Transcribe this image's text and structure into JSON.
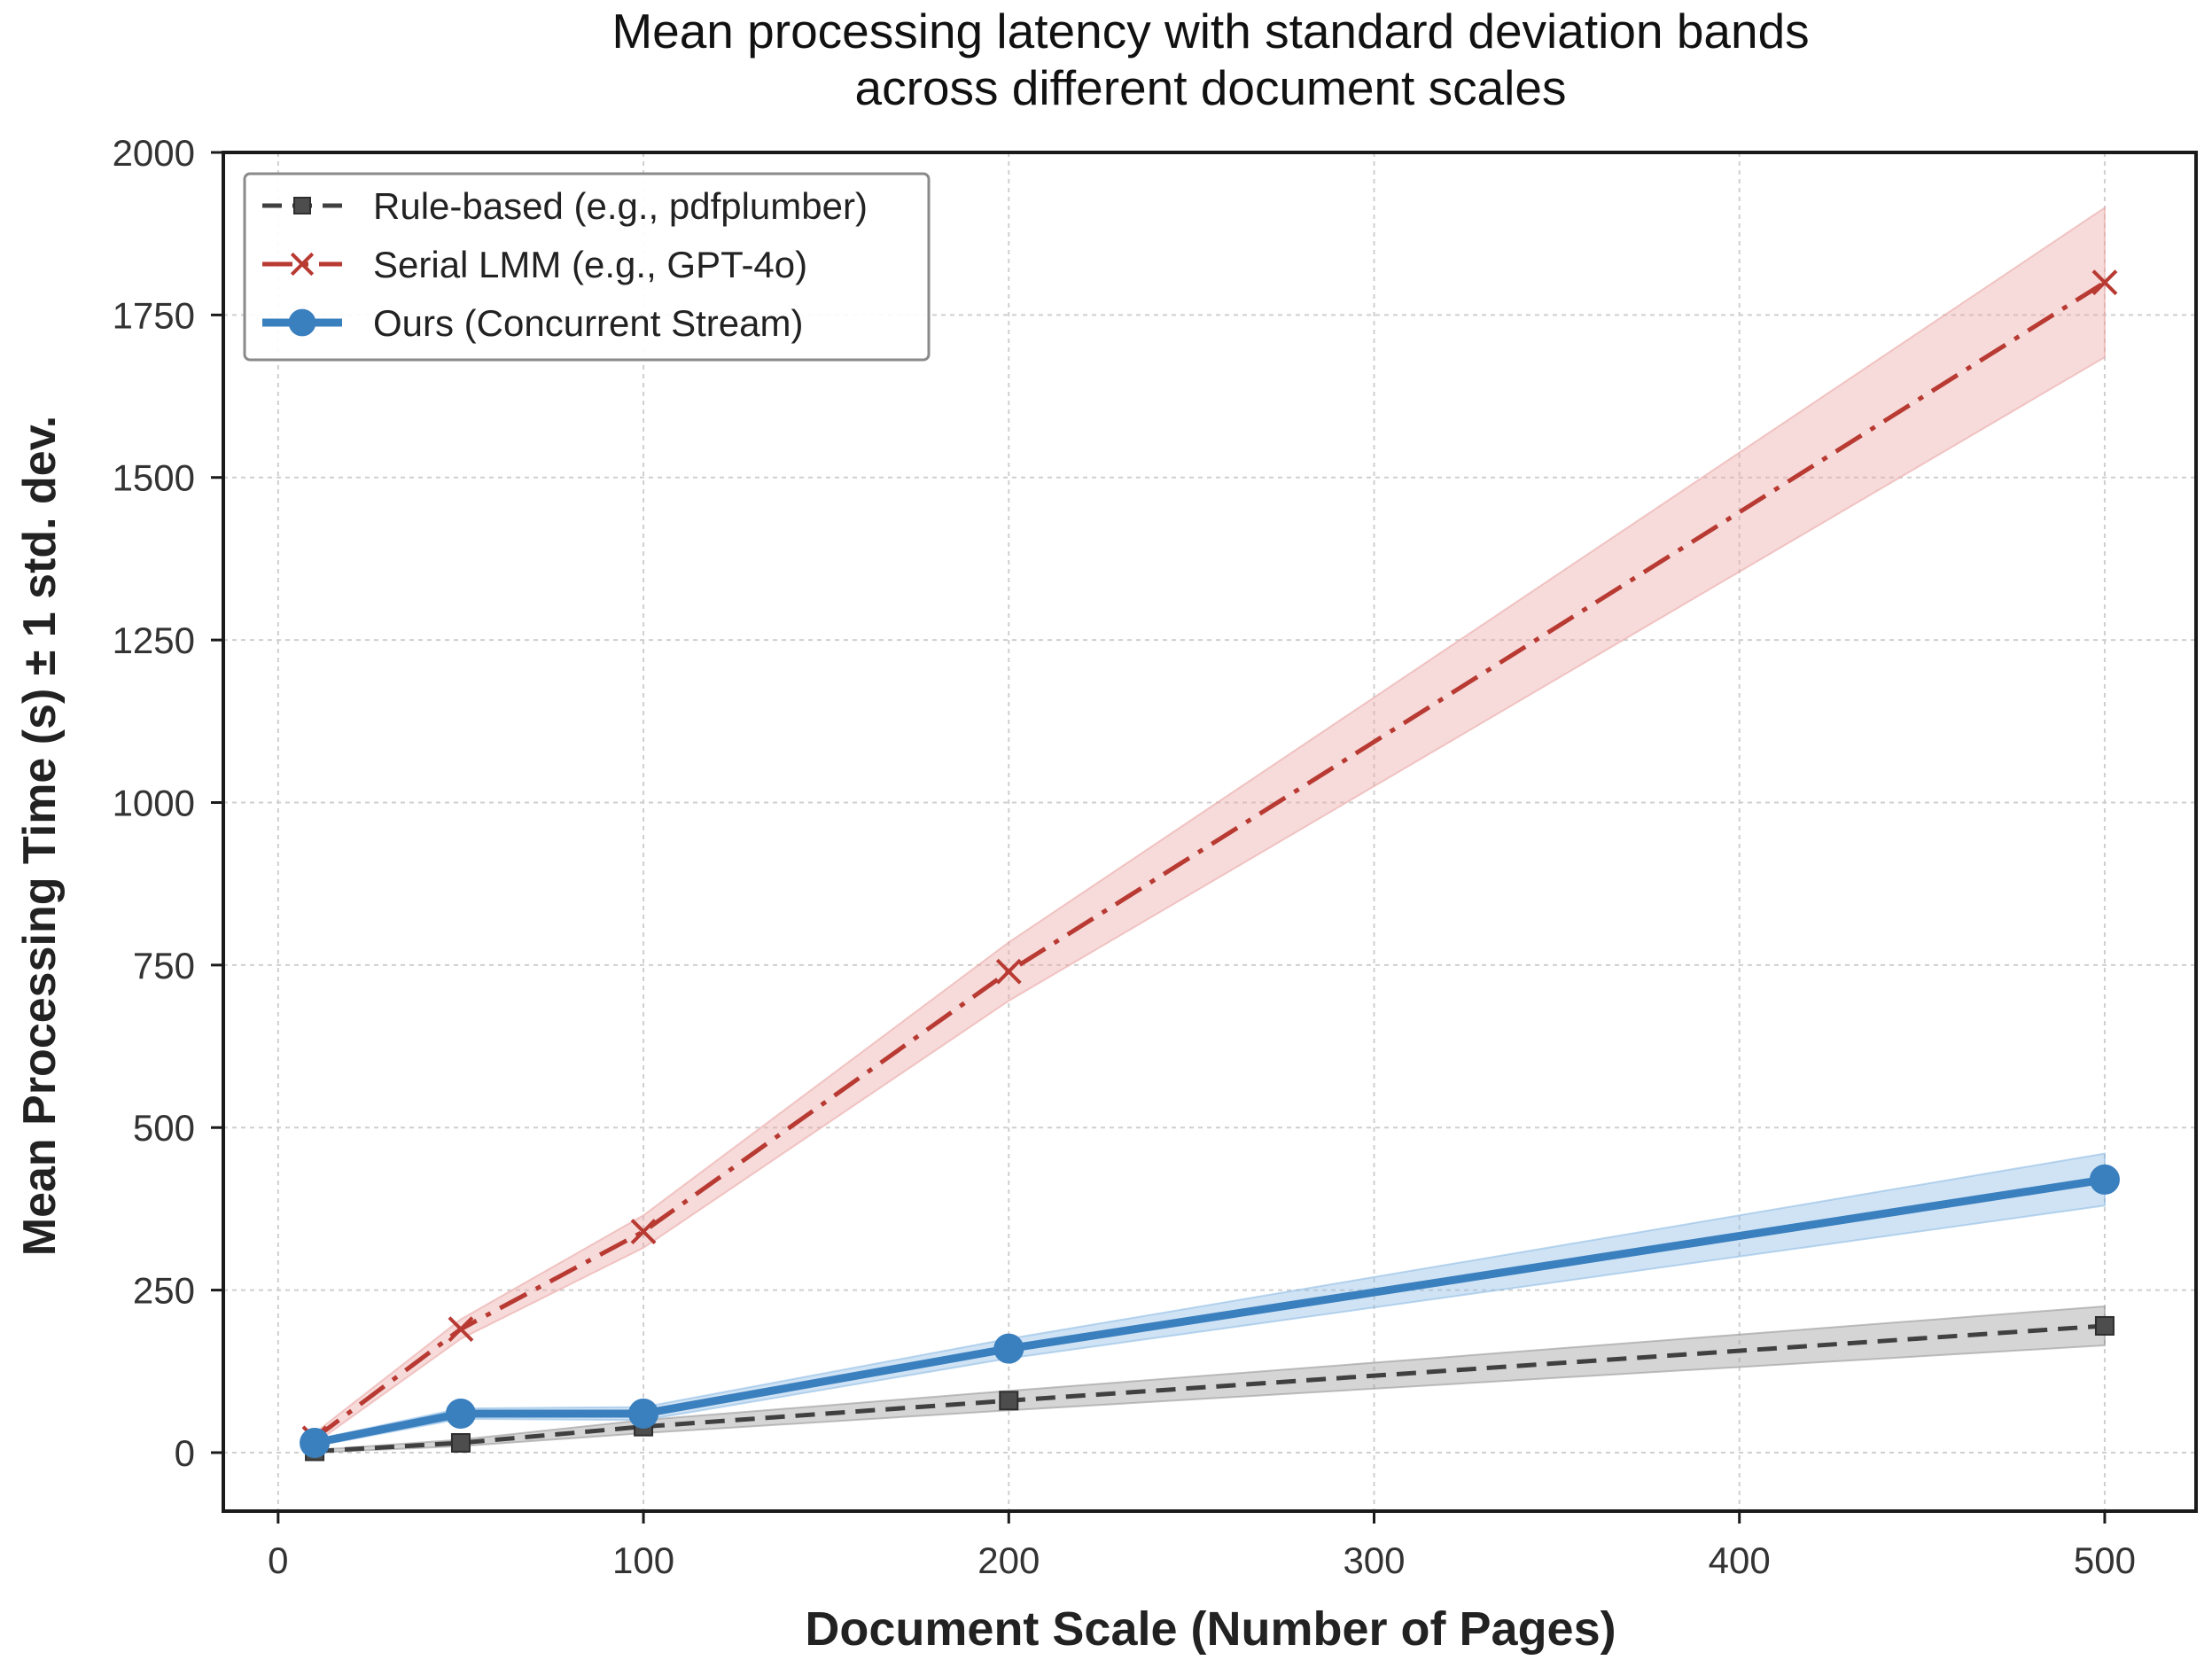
{
  "chart_data": {
    "type": "line",
    "title": "Mean processing latency with standard deviation bands",
    "subtitle": "across different document scales",
    "xlabel": "Document Scale (Number of Pages)",
    "ylabel": "Mean Processing Time (s) ± 1 std. dev.",
    "xlim": [
      -15,
      525
    ],
    "ylim": [
      -90,
      2000
    ],
    "xticks": [
      0,
      100,
      200,
      300,
      400,
      500
    ],
    "yticks": [
      0,
      250,
      500,
      750,
      1000,
      1250,
      1500,
      1750,
      2000
    ],
    "grid": true,
    "legend_position": "upper-left",
    "series": [
      {
        "name": "Rule-based (e.g., pdfplumber)",
        "color": "#404040",
        "band_color": "#9a9a9a",
        "line_style": "dashed",
        "marker": "square",
        "x": [
          10,
          50,
          100,
          200,
          500
        ],
        "y": [
          2,
          15,
          40,
          80,
          195
        ],
        "std": [
          2,
          5,
          10,
          15,
          30
        ]
      },
      {
        "name": "Serial LMM (e.g., GPT-4o)",
        "color": "#b83a32",
        "band_color": "#e9a9a6",
        "line_style": "dashdot",
        "marker": "x",
        "x": [
          10,
          50,
          100,
          200,
          500
        ],
        "y": [
          22,
          190,
          340,
          740,
          1800
        ],
        "std": [
          8,
          15,
          25,
          45,
          115
        ]
      },
      {
        "name": "Ours (Concurrent Stream)",
        "color": "#3a7fbe",
        "band_color": "#8fbde4",
        "line_style": "solid",
        "marker": "circle",
        "x": [
          10,
          50,
          100,
          200,
          500
        ],
        "y": [
          15,
          60,
          60,
          160,
          420
        ],
        "std": [
          5,
          8,
          10,
          15,
          40
        ]
      }
    ]
  }
}
